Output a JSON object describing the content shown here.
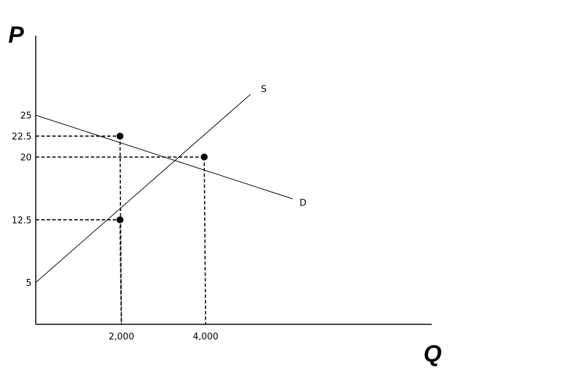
{
  "chart_data": {
    "type": "line",
    "xlabel": "Q",
    "ylabel": "P",
    "xlim": [
      0,
      9400
    ],
    "ylim": [
      0,
      34.5
    ],
    "grid": false,
    "y_ticks": [
      {
        "value": 25,
        "label": "25"
      },
      {
        "value": 22.5,
        "label": "22.5"
      },
      {
        "value": 20,
        "label": "20"
      },
      {
        "value": 12.5,
        "label": "12.5"
      },
      {
        "value": 5,
        "label": "5"
      }
    ],
    "x_ticks": [
      {
        "value": 2000,
        "label": "2,000"
      },
      {
        "value": 4000,
        "label": "4,000"
      }
    ],
    "series": [
      {
        "name": "D",
        "x": [
          0,
          6100
        ],
        "y": [
          25,
          15
        ],
        "color": "#000000"
      },
      {
        "name": "S",
        "x": [
          0,
          5100
        ],
        "y": [
          5,
          27.5
        ],
        "color": "#000000"
      }
    ],
    "points": [
      {
        "x": 2000,
        "y": 22.5
      },
      {
        "x": 4000,
        "y": 20
      },
      {
        "x": 2000,
        "y": 12.5
      }
    ],
    "dashed_guides": [
      {
        "x": 2000,
        "y": 22.5
      },
      {
        "x": 4000,
        "y": 20
      },
      {
        "x": 2000,
        "y": 12.5
      }
    ]
  }
}
